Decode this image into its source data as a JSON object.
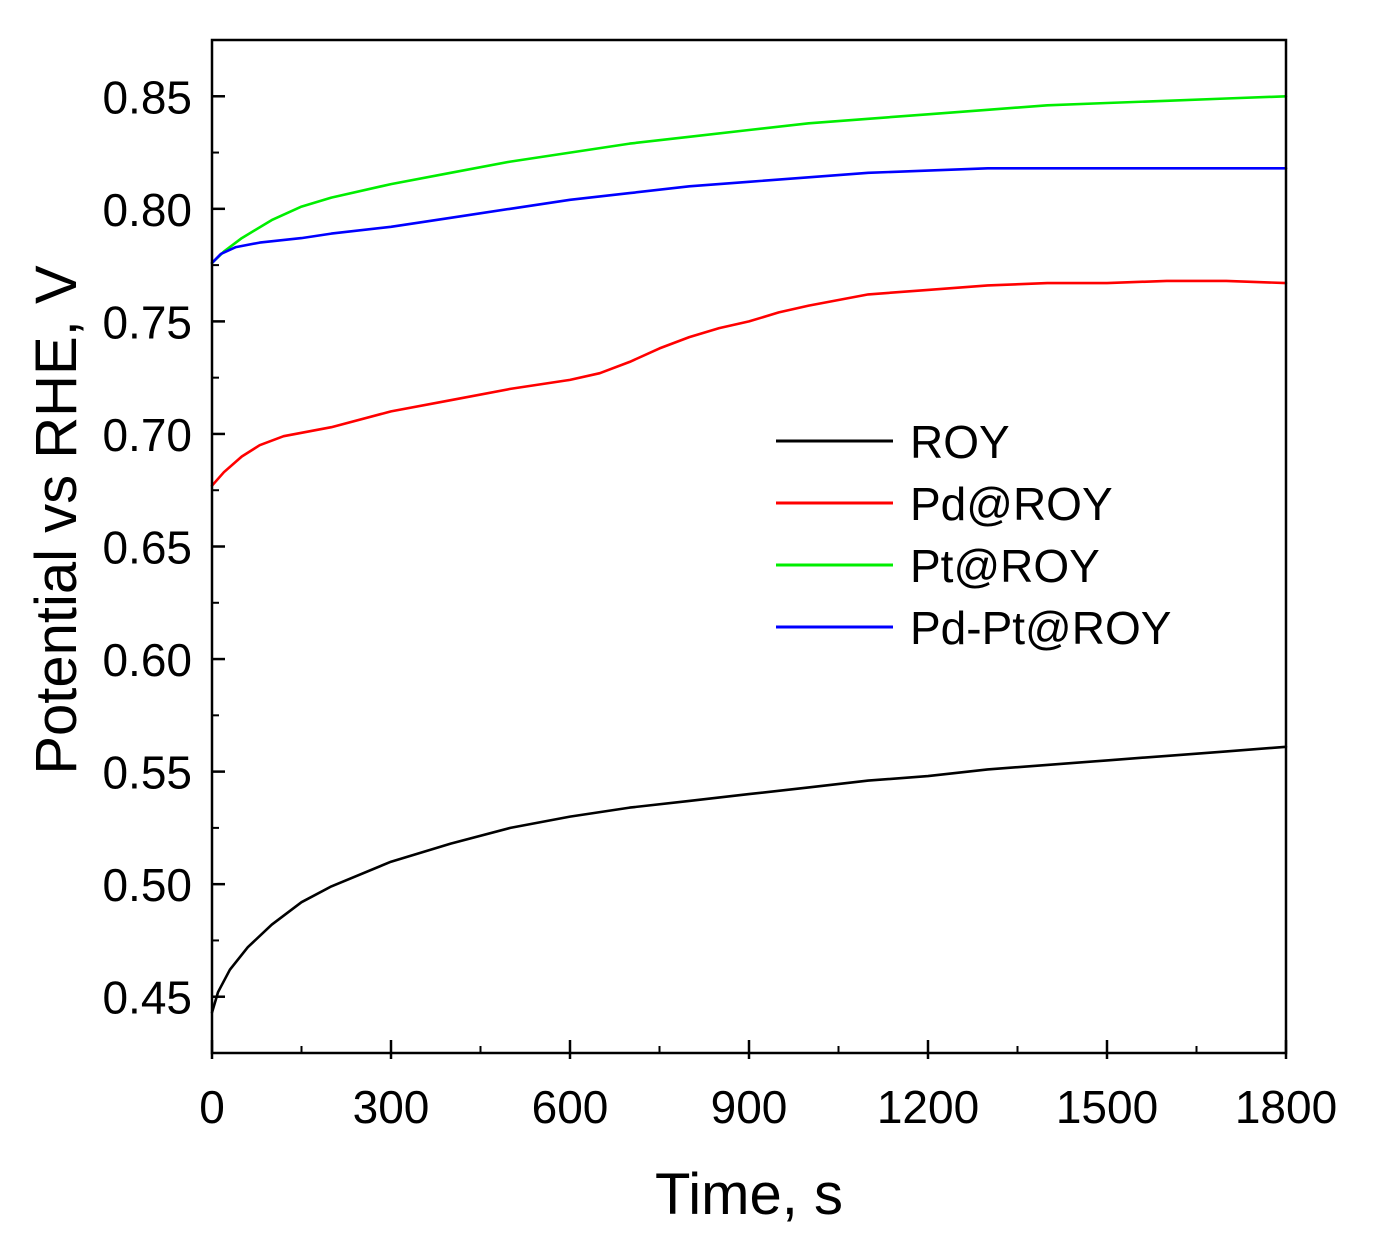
{
  "chart_data": {
    "type": "line",
    "title": "",
    "xlabel": "Time, s",
    "ylabel": "Potential vs RHE, V",
    "xlim": [
      0,
      1800
    ],
    "ylim": [
      0.425,
      0.875
    ],
    "xticks": [
      0,
      300,
      600,
      900,
      1200,
      1500,
      1800
    ],
    "xtick_labels": [
      "0",
      "300",
      "600",
      "900",
      "1200",
      "1500",
      "1800"
    ],
    "yticks": [
      0.45,
      0.5,
      0.55,
      0.6,
      0.65,
      0.7,
      0.75,
      0.8,
      0.85
    ],
    "ytick_labels": [
      "0.45",
      "0.50",
      "0.55",
      "0.60",
      "0.65",
      "0.70",
      "0.75",
      "0.80",
      "0.85"
    ],
    "grid": false,
    "legend_position": "center-right",
    "series": [
      {
        "name": "ROY",
        "color": "#000000",
        "x": [
          0,
          10,
          30,
          60,
          100,
          150,
          200,
          300,
          400,
          500,
          600,
          700,
          800,
          900,
          1000,
          1100,
          1200,
          1300,
          1400,
          1500,
          1600,
          1700,
          1800
        ],
        "y": [
          0.443,
          0.452,
          0.462,
          0.472,
          0.482,
          0.492,
          0.499,
          0.51,
          0.518,
          0.525,
          0.53,
          0.534,
          0.537,
          0.54,
          0.543,
          0.546,
          0.548,
          0.551,
          0.553,
          0.555,
          0.557,
          0.559,
          0.561
        ]
      },
      {
        "name": "Pd@ROY",
        "color": "#ff0000",
        "x": [
          0,
          20,
          50,
          80,
          120,
          200,
          300,
          400,
          500,
          600,
          650,
          700,
          750,
          800,
          850,
          900,
          950,
          1000,
          1100,
          1200,
          1300,
          1400,
          1500,
          1600,
          1700,
          1800
        ],
        "y": [
          0.677,
          0.683,
          0.69,
          0.695,
          0.699,
          0.703,
          0.71,
          0.715,
          0.72,
          0.724,
          0.727,
          0.732,
          0.738,
          0.743,
          0.747,
          0.75,
          0.754,
          0.757,
          0.762,
          0.764,
          0.766,
          0.767,
          0.767,
          0.768,
          0.768,
          0.767
        ]
      },
      {
        "name": "Pt@ROY",
        "color": "#00ee00",
        "x": [
          0,
          20,
          50,
          100,
          150,
          200,
          300,
          400,
          500,
          600,
          700,
          800,
          900,
          1000,
          1100,
          1200,
          1300,
          1400,
          1500,
          1600,
          1700,
          1800
        ],
        "y": [
          0.776,
          0.781,
          0.787,
          0.795,
          0.801,
          0.805,
          0.811,
          0.816,
          0.821,
          0.825,
          0.829,
          0.832,
          0.835,
          0.838,
          0.84,
          0.842,
          0.844,
          0.846,
          0.847,
          0.848,
          0.849,
          0.85
        ]
      },
      {
        "name": "Pd-Pt@ROY",
        "color": "#0000ff",
        "x": [
          0,
          15,
          40,
          80,
          150,
          200,
          300,
          400,
          500,
          600,
          700,
          800,
          900,
          1000,
          1100,
          1200,
          1300,
          1400,
          1500,
          1600,
          1700,
          1800
        ],
        "y": [
          0.776,
          0.78,
          0.783,
          0.785,
          0.787,
          0.789,
          0.792,
          0.796,
          0.8,
          0.804,
          0.807,
          0.81,
          0.812,
          0.814,
          0.816,
          0.817,
          0.818,
          0.818,
          0.818,
          0.818,
          0.818,
          0.818
        ]
      }
    ]
  }
}
